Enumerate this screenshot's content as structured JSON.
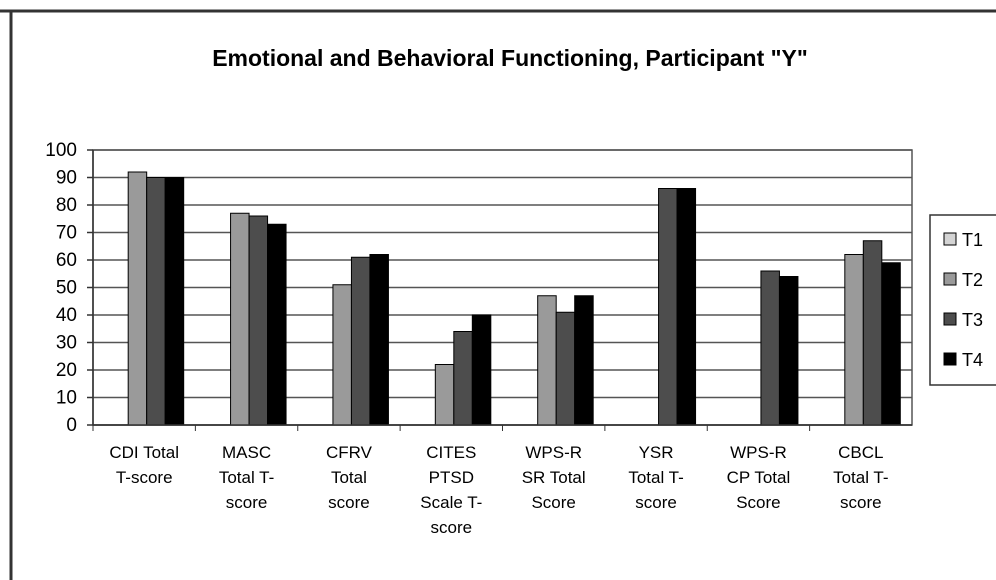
{
  "chart_data": {
    "type": "bar",
    "title": "Emotional and Behavioral Functioning, Participant \"Y\"",
    "categories": [
      "CDI Total\nT-score",
      "MASC\nTotal T-\nscore",
      "CFRV\nTotal\nscore",
      "CITES\nPTSD\nScale T-\nscore",
      "WPS-R\nSR Total\nScore",
      "YSR\nTotal T-\nscore",
      "WPS-R\nCP Total\nScore",
      "CBCL\nTotal T-\nscore"
    ],
    "series": [
      {
        "name": "T1",
        "color": "#d4d4d4",
        "values": [
          null,
          null,
          null,
          null,
          null,
          null,
          null,
          null
        ]
      },
      {
        "name": "T2",
        "color": "#9a9a9a",
        "values": [
          92,
          77,
          51,
          22,
          47,
          null,
          null,
          62
        ]
      },
      {
        "name": "T3",
        "color": "#4d4d4d",
        "values": [
          90,
          76,
          61,
          34,
          41,
          86,
          56,
          67
        ]
      },
      {
        "name": "T4",
        "color": "#000000",
        "values": [
          90,
          73,
          62,
          40,
          47,
          86,
          54,
          59
        ]
      }
    ],
    "ylim": [
      0,
      100
    ],
    "yticks": [
      0,
      10,
      20,
      30,
      40,
      50,
      60,
      70,
      80,
      90,
      100
    ],
    "grid": true,
    "legend": "right"
  }
}
